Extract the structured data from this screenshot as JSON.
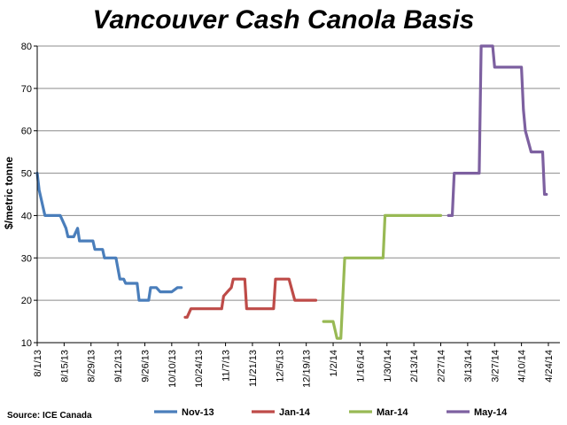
{
  "chart_data": {
    "type": "line",
    "title": "Vancouver Cash Canola Basis",
    "ylabel": "$/metric  tonne",
    "xlabel": "",
    "ylim": [
      10,
      80
    ],
    "yticks": [
      10,
      20,
      30,
      40,
      50,
      60,
      70,
      80
    ],
    "grid": "horizontal",
    "legend_position": "bottom",
    "source": "Source: ICE Canada",
    "xtick_labels": [
      "8/1/13",
      "8/15/13",
      "8/29/13",
      "9/12/13",
      "9/26/13",
      "10/10/13",
      "10/24/13",
      "11/7/13",
      "11/21/13",
      "12/5/13",
      "12/19/13",
      "1/2/14",
      "1/16/14",
      "1/30/14",
      "2/13/14",
      "2/27/14",
      "3/13/14",
      "3/27/14",
      "4/10/14",
      "4/24/14"
    ],
    "series": [
      {
        "name": "Nov-13",
        "color": "#4a7ebb",
        "points": [
          [
            "8/1/13",
            50
          ],
          [
            "8/2/13",
            46
          ],
          [
            "8/5/13",
            40
          ],
          [
            "8/13/13",
            40
          ],
          [
            "8/14/13",
            39
          ],
          [
            "8/16/13",
            37
          ],
          [
            "8/17/13",
            35
          ],
          [
            "8/20/13",
            35
          ],
          [
            "8/22/13",
            37
          ],
          [
            "8/23/13",
            34
          ],
          [
            "8/30/13",
            34
          ],
          [
            "8/31/13",
            32
          ],
          [
            "9/4/13",
            32
          ],
          [
            "9/5/13",
            30
          ],
          [
            "9/11/13",
            30
          ],
          [
            "9/13/13",
            25
          ],
          [
            "9/15/13",
            25
          ],
          [
            "9/16/13",
            24
          ],
          [
            "9/22/13",
            24
          ],
          [
            "9/23/13",
            20
          ],
          [
            "9/28/13",
            20
          ],
          [
            "9/29/13",
            23
          ],
          [
            "10/2/13",
            23
          ],
          [
            "10/4/13",
            22
          ],
          [
            "10/10/13",
            22
          ],
          [
            "10/13/13",
            23
          ],
          [
            "10/15/13",
            23
          ]
        ]
      },
      {
        "name": "Jan-14",
        "color": "#be4b48",
        "points": [
          [
            "10/17/13",
            16
          ],
          [
            "10/18/13",
            16
          ],
          [
            "10/20/13",
            18
          ],
          [
            "11/5/13",
            18
          ],
          [
            "11/6/13",
            21
          ],
          [
            "11/8/13",
            22
          ],
          [
            "11/10/13",
            23
          ],
          [
            "11/11/13",
            25
          ],
          [
            "11/17/13",
            25
          ],
          [
            "11/18/13",
            18
          ],
          [
            "12/2/13",
            18
          ],
          [
            "12/3/13",
            25
          ],
          [
            "12/10/13",
            25
          ],
          [
            "12/13/13",
            20
          ],
          [
            "12/24/13",
            20
          ]
        ]
      },
      {
        "name": "Mar-14",
        "color": "#98b954",
        "points": [
          [
            "12/28/13",
            15
          ],
          [
            "1/2/14",
            15
          ],
          [
            "1/4/14",
            11
          ],
          [
            "1/6/14",
            11
          ],
          [
            "1/8/14",
            30
          ],
          [
            "1/28/14",
            30
          ],
          [
            "1/29/14",
            40
          ],
          [
            "2/27/14",
            40
          ]
        ]
      },
      {
        "name": "May-14",
        "color": "#7d60a0",
        "points": [
          [
            "3/3/14",
            40
          ],
          [
            "3/5/14",
            40
          ],
          [
            "3/6/14",
            50
          ],
          [
            "3/19/14",
            50
          ],
          [
            "3/20/14",
            80
          ],
          [
            "3/26/14",
            80
          ],
          [
            "3/27/14",
            75
          ],
          [
            "4/10/14",
            75
          ],
          [
            "4/11/14",
            65
          ],
          [
            "4/12/14",
            60
          ],
          [
            "4/15/14",
            55
          ],
          [
            "4/21/14",
            55
          ],
          [
            "4/22/14",
            45
          ],
          [
            "4/23/14",
            45
          ]
        ]
      }
    ]
  }
}
